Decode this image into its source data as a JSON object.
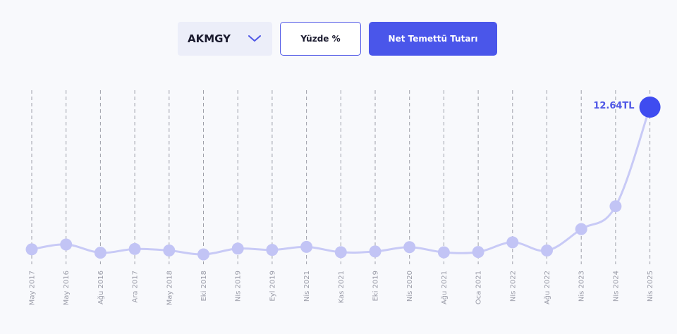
{
  "controls": {
    "symbol": "AKMGY",
    "percent_label": "Yüzde %",
    "amount_label": "Net Temettü Tutarı"
  },
  "colors": {
    "accent": "#4a56ea",
    "point": "#c2c4f5",
    "line": "#c8caf6",
    "highlight": "#3f4cf0",
    "grid": "#9ea0aa"
  },
  "chart_data": {
    "type": "line",
    "grid": true,
    "x": [
      "May 2017",
      "May 2016",
      "Ağu 2016",
      "Ara 2017",
      "May 2018",
      "Eki 2018",
      "Nis 2019",
      "Eyl 2019",
      "Nis 2021",
      "Kas 2021",
      "Eki 2019",
      "Nis 2020",
      "Ağu 2021",
      "Oca 2021",
      "Nis 2022",
      "Ağu 2022",
      "Nis 2023",
      "Nis 2024",
      "Nis 2025"
    ],
    "values": [
      0.82,
      1.22,
      0.54,
      0.85,
      0.72,
      0.4,
      0.88,
      0.77,
      1.02,
      0.58,
      0.64,
      1.0,
      0.57,
      0.6,
      1.4,
      0.72,
      2.5,
      4.4,
      12.64
    ],
    "y_axis_visible": false,
    "highlight": {
      "index": 18,
      "label": "12.64TL"
    }
  }
}
